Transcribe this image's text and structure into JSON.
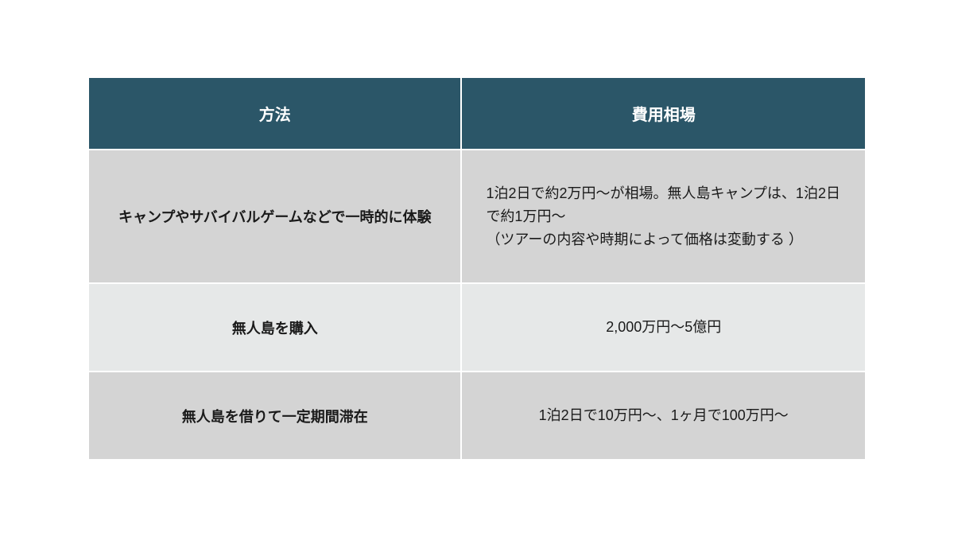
{
  "table": {
    "header_bg_color": "#2b5668",
    "row_colors_odd": "#d4d4d4",
    "row_colors_even": "#e6e8e8",
    "text_color": "#1a1a1a",
    "header_text_color": "#ffffff",
    "columns": [
      {
        "label": "方法"
      },
      {
        "label": "費用相場"
      }
    ],
    "rows": [
      {
        "method": "キャンプやサバイバルゲームなどで一時的に体験",
        "cost": "1泊2日で約2万円〜が相場。無人島キャンプは、1泊2日で約1万円〜\n（ツアーの内容や時期によって価格は変動する ）",
        "cost_align": "left"
      },
      {
        "method": "無人島を購入",
        "cost": "2,000万円〜5億円",
        "cost_align": "center"
      },
      {
        "method": "無人島を借りて一定期間滞在",
        "cost": "1泊2日で10万円〜、1ヶ月で100万円〜",
        "cost_align": "center"
      }
    ]
  }
}
